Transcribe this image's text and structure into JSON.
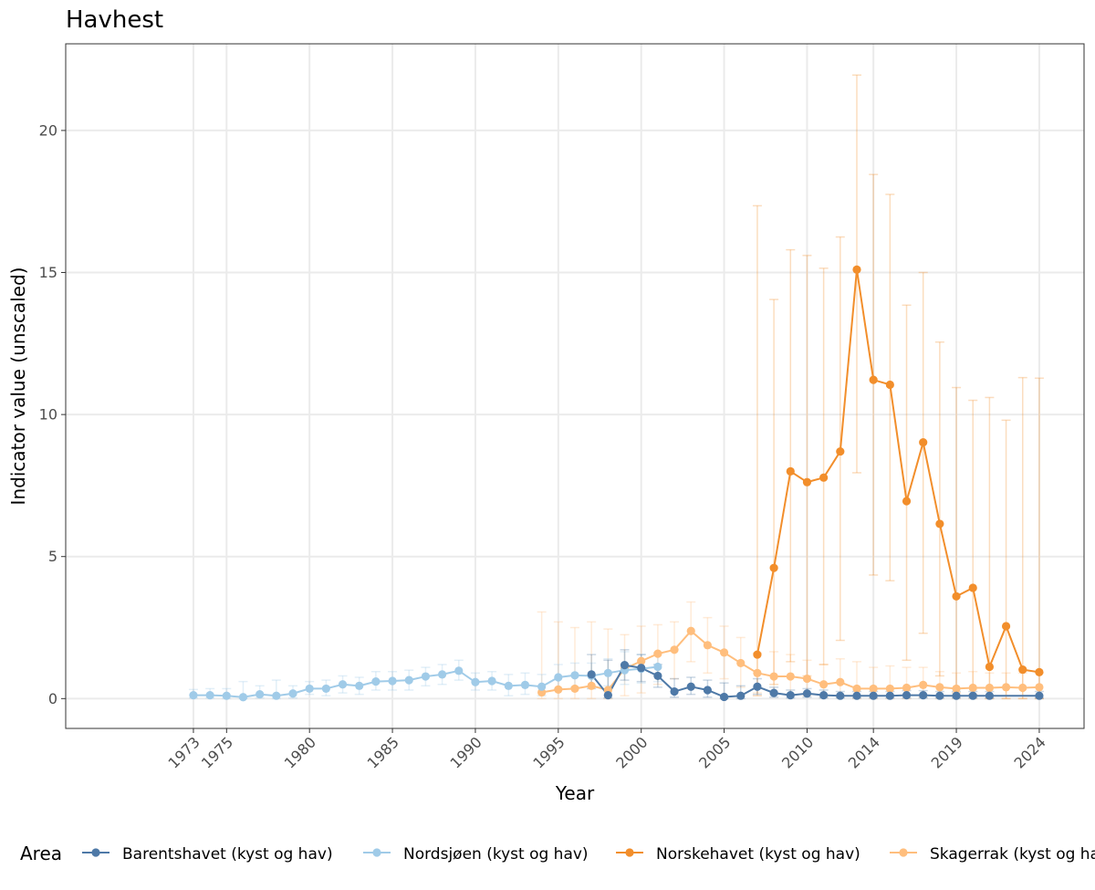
{
  "chart_data": {
    "type": "line",
    "title": "Havhest",
    "xlabel": "Year",
    "ylabel": "Indicator value (unscaled)",
    "xlim": [
      1965.3,
      2026.7
    ],
    "ylim": [
      -1.05,
      23.05
    ],
    "x_ticks": [
      1973,
      1975,
      1980,
      1985,
      1990,
      1995,
      2000,
      2005,
      2010,
      2014,
      2019,
      2024
    ],
    "y_ticks": [
      0,
      5,
      10,
      15,
      20
    ],
    "grid": true,
    "legend_title": "Area",
    "legend_position": "bottom",
    "series": [
      {
        "name": "Barentshavet (kyst og hav)",
        "color": "#4e79a7",
        "points": [
          {
            "x": 1997,
            "y": 0.85,
            "lo": 0.35,
            "hi": 1.55
          },
          {
            "x": 1998,
            "y": 0.12,
            "lo": 0.02,
            "hi": 1.35
          },
          {
            "x": 1999,
            "y": 1.18,
            "lo": 0.65,
            "hi": 1.72
          },
          {
            "x": 2000,
            "y": 1.08,
            "lo": 0.6,
            "hi": 1.55
          },
          {
            "x": 2001,
            "y": 0.8,
            "lo": 0.4,
            "hi": 1.2
          },
          {
            "x": 2002,
            "y": 0.25,
            "lo": 0.05,
            "hi": 0.7
          },
          {
            "x": 2003,
            "y": 0.42,
            "lo": 0.15,
            "hi": 0.75
          },
          {
            "x": 2004,
            "y": 0.3,
            "lo": 0.05,
            "hi": 0.65
          },
          {
            "x": 2005,
            "y": 0.06,
            "lo": 0.0,
            "hi": 0.55
          },
          {
            "x": 2006,
            "y": 0.1,
            "lo": 0.0,
            "hi": 0.45
          },
          {
            "x": 2007,
            "y": 0.42,
            "lo": 0.15,
            "hi": 0.7
          },
          {
            "x": 2008,
            "y": 0.2,
            "lo": 0.05,
            "hi": 0.4
          },
          {
            "x": 2009,
            "y": 0.12,
            "lo": 0.02,
            "hi": 0.3
          },
          {
            "x": 2010,
            "y": 0.18,
            "lo": 0.05,
            "hi": 0.35
          },
          {
            "x": 2011,
            "y": 0.12,
            "lo": 0.02,
            "hi": 0.3
          },
          {
            "x": 2012,
            "y": 0.1,
            "lo": 0.02,
            "hi": 0.25
          },
          {
            "x": 2013,
            "y": 0.1,
            "lo": 0.02,
            "hi": 0.25
          },
          {
            "x": 2014,
            "y": 0.1,
            "lo": 0.02,
            "hi": 0.25
          },
          {
            "x": 2015,
            "y": 0.1,
            "lo": 0.02,
            "hi": 0.25
          },
          {
            "x": 2016,
            "y": 0.12,
            "lo": 0.02,
            "hi": 0.28
          },
          {
            "x": 2017,
            "y": 0.12,
            "lo": 0.02,
            "hi": 0.28
          },
          {
            "x": 2018,
            "y": 0.1,
            "lo": 0.02,
            "hi": 0.25
          },
          {
            "x": 2019,
            "y": 0.1,
            "lo": 0.02,
            "hi": 0.25
          },
          {
            "x": 2020,
            "y": 0.1,
            "lo": 0.02,
            "hi": 0.25
          },
          {
            "x": 2021,
            "y": 0.1,
            "lo": 0.02,
            "hi": 0.25
          },
          {
            "x": 2024,
            "y": 0.1,
            "lo": 0.02,
            "hi": 0.25
          }
        ]
      },
      {
        "name": "Nordsjøen (kyst og hav)",
        "color": "#a0cbe8",
        "points": [
          {
            "x": 1973,
            "y": 0.12,
            "lo": 0.02,
            "hi": 0.32
          },
          {
            "x": 1974,
            "y": 0.12,
            "lo": 0.02,
            "hi": 0.35
          },
          {
            "x": 1975,
            "y": 0.1,
            "lo": 0.0,
            "hi": 0.35
          },
          {
            "x": 1976,
            "y": 0.05,
            "lo": 0.0,
            "hi": 0.6
          },
          {
            "x": 1977,
            "y": 0.15,
            "lo": 0.02,
            "hi": 0.45
          },
          {
            "x": 1978,
            "y": 0.1,
            "lo": 0.0,
            "hi": 0.65
          },
          {
            "x": 1979,
            "y": 0.18,
            "lo": 0.02,
            "hi": 0.45
          },
          {
            "x": 1980,
            "y": 0.35,
            "lo": 0.15,
            "hi": 0.6
          },
          {
            "x": 1981,
            "y": 0.35,
            "lo": 0.1,
            "hi": 0.65
          },
          {
            "x": 1982,
            "y": 0.5,
            "lo": 0.2,
            "hi": 0.8
          },
          {
            "x": 1983,
            "y": 0.45,
            "lo": 0.15,
            "hi": 0.75
          },
          {
            "x": 1984,
            "y": 0.6,
            "lo": 0.3,
            "hi": 0.95
          },
          {
            "x": 1985,
            "y": 0.62,
            "lo": 0.3,
            "hi": 0.95
          },
          {
            "x": 1986,
            "y": 0.65,
            "lo": 0.3,
            "hi": 1.0
          },
          {
            "x": 1987,
            "y": 0.78,
            "lo": 0.45,
            "hi": 1.1
          },
          {
            "x": 1988,
            "y": 0.85,
            "lo": 0.5,
            "hi": 1.2
          },
          {
            "x": 1989,
            "y": 0.98,
            "lo": 0.65,
            "hi": 1.35
          },
          {
            "x": 1990,
            "y": 0.58,
            "lo": 0.3,
            "hi": 0.9
          },
          {
            "x": 1991,
            "y": 0.62,
            "lo": 0.3,
            "hi": 0.95
          },
          {
            "x": 1992,
            "y": 0.45,
            "lo": 0.1,
            "hi": 0.85
          },
          {
            "x": 1993,
            "y": 0.48,
            "lo": 0.15,
            "hi": 0.9
          },
          {
            "x": 1994,
            "y": 0.42,
            "lo": 0.1,
            "hi": 0.85
          },
          {
            "x": 1995,
            "y": 0.75,
            "lo": 0.35,
            "hi": 1.2
          },
          {
            "x": 1996,
            "y": 0.82,
            "lo": 0.4,
            "hi": 1.25
          },
          {
            "x": 1997,
            "y": 0.8,
            "lo": 0.4,
            "hi": 1.25
          },
          {
            "x": 1998,
            "y": 0.9,
            "lo": 0.45,
            "hi": 1.4
          },
          {
            "x": 1999,
            "y": 1.0,
            "lo": 0.5,
            "hi": 1.65
          },
          {
            "x": 2000,
            "y": 1.05,
            "lo": 0.55,
            "hi": 1.55
          },
          {
            "x": 2001,
            "y": 1.12,
            "lo": 0.6,
            "hi": 1.6
          }
        ]
      },
      {
        "name": "Norskehavet (kyst og hav)",
        "color": "#f28e2b",
        "points": [
          {
            "x": 2007,
            "y": 1.55,
            "lo": 0.1,
            "hi": 17.35
          },
          {
            "x": 2008,
            "y": 4.6,
            "lo": 0.5,
            "hi": 14.05
          },
          {
            "x": 2009,
            "y": 8.0,
            "lo": 1.3,
            "hi": 15.8
          },
          {
            "x": 2010,
            "y": 7.62,
            "lo": 0.8,
            "hi": 15.6
          },
          {
            "x": 2011,
            "y": 7.78,
            "lo": 1.2,
            "hi": 15.15
          },
          {
            "x": 2012,
            "y": 8.7,
            "lo": 2.05,
            "hi": 16.25
          },
          {
            "x": 2013,
            "y": 15.1,
            "lo": 7.95,
            "hi": 21.95
          },
          {
            "x": 2014,
            "y": 11.22,
            "lo": 4.35,
            "hi": 18.45
          },
          {
            "x": 2015,
            "y": 11.05,
            "lo": 4.15,
            "hi": 17.75
          },
          {
            "x": 2016,
            "y": 6.95,
            "lo": 1.35,
            "hi": 13.85
          },
          {
            "x": 2017,
            "y": 9.02,
            "lo": 2.3,
            "hi": 15.0
          },
          {
            "x": 2018,
            "y": 6.15,
            "lo": 0.8,
            "hi": 12.55
          },
          {
            "x": 2019,
            "y": 3.6,
            "lo": 0.2,
            "hi": 10.95
          },
          {
            "x": 2020,
            "y": 3.9,
            "lo": 0.15,
            "hi": 10.5
          },
          {
            "x": 2021,
            "y": 1.12,
            "lo": 0.0,
            "hi": 10.6
          },
          {
            "x": 2022,
            "y": 2.55,
            "lo": 0.0,
            "hi": 9.8
          },
          {
            "x": 2023,
            "y": 1.02,
            "lo": 0.0,
            "hi": 11.3
          },
          {
            "x": 2024,
            "y": 0.93,
            "lo": 0.0,
            "hi": 11.28
          }
        ]
      },
      {
        "name": "Skagerrak (kyst og hav)",
        "color": "#ffbe7d",
        "points": [
          {
            "x": 1994,
            "y": 0.22,
            "lo": 0.0,
            "hi": 3.05
          },
          {
            "x": 1995,
            "y": 0.32,
            "lo": 0.0,
            "hi": 2.7
          },
          {
            "x": 1996,
            "y": 0.35,
            "lo": 0.0,
            "hi": 2.5
          },
          {
            "x": 1997,
            "y": 0.45,
            "lo": 0.0,
            "hi": 2.7
          },
          {
            "x": 1998,
            "y": 0.3,
            "lo": 0.0,
            "hi": 2.45
          },
          {
            "x": 1999,
            "y": 1.05,
            "lo": 0.1,
            "hi": 2.25
          },
          {
            "x": 2000,
            "y": 1.32,
            "lo": 0.2,
            "hi": 2.55
          },
          {
            "x": 2001,
            "y": 1.58,
            "lo": 0.5,
            "hi": 2.6
          },
          {
            "x": 2002,
            "y": 1.72,
            "lo": 0.7,
            "hi": 2.7
          },
          {
            "x": 2003,
            "y": 2.38,
            "lo": 1.3,
            "hi": 3.4
          },
          {
            "x": 2004,
            "y": 1.88,
            "lo": 0.9,
            "hi": 2.85
          },
          {
            "x": 2005,
            "y": 1.62,
            "lo": 0.7,
            "hi": 2.55
          },
          {
            "x": 2006,
            "y": 1.25,
            "lo": 0.4,
            "hi": 2.15
          },
          {
            "x": 2007,
            "y": 0.9,
            "lo": 0.2,
            "hi": 1.6
          },
          {
            "x": 2008,
            "y": 0.78,
            "lo": 0.15,
            "hi": 1.65
          },
          {
            "x": 2009,
            "y": 0.78,
            "lo": 0.15,
            "hi": 1.55
          },
          {
            "x": 2010,
            "y": 0.7,
            "lo": 0.1,
            "hi": 1.35
          },
          {
            "x": 2011,
            "y": 0.5,
            "lo": 0.05,
            "hi": 1.2
          },
          {
            "x": 2012,
            "y": 0.58,
            "lo": 0.05,
            "hi": 1.4
          },
          {
            "x": 2013,
            "y": 0.35,
            "lo": 0.0,
            "hi": 1.3
          },
          {
            "x": 2014,
            "y": 0.35,
            "lo": 0.0,
            "hi": 1.1
          },
          {
            "x": 2015,
            "y": 0.35,
            "lo": 0.0,
            "hi": 1.15
          },
          {
            "x": 2016,
            "y": 0.38,
            "lo": 0.0,
            "hi": 1.1
          },
          {
            "x": 2017,
            "y": 0.48,
            "lo": 0.05,
            "hi": 1.1
          },
          {
            "x": 2018,
            "y": 0.4,
            "lo": 0.0,
            "hi": 0.95
          },
          {
            "x": 2019,
            "y": 0.35,
            "lo": 0.0,
            "hi": 0.9
          },
          {
            "x": 2020,
            "y": 0.38,
            "lo": 0.0,
            "hi": 0.95
          },
          {
            "x": 2021,
            "y": 0.38,
            "lo": 0.0,
            "hi": 0.9
          },
          {
            "x": 2022,
            "y": 0.4,
            "lo": 0.0,
            "hi": 0.9
          },
          {
            "x": 2023,
            "y": 0.38,
            "lo": 0.0,
            "hi": 0.9
          },
          {
            "x": 2024,
            "y": 0.4,
            "lo": 0.0,
            "hi": 0.9
          }
        ]
      }
    ]
  }
}
